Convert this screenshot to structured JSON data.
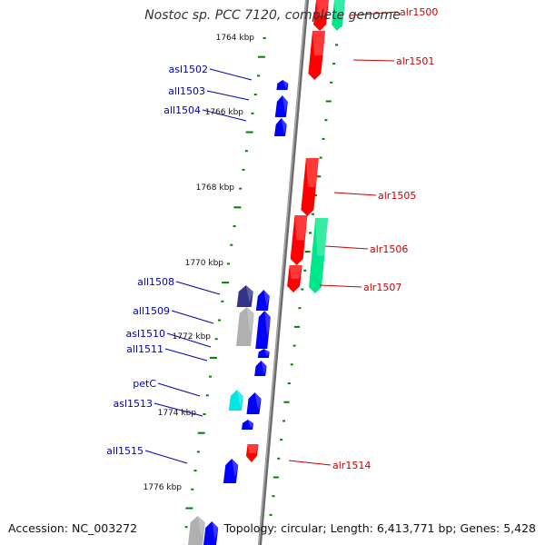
{
  "title": "Nostoc sp. PCC 7120, complete genome",
  "footer": {
    "accession": "Accession: NC_003272",
    "topology": "Topology: circular; Length: 6,413,771 bp; Genes: 5,428"
  },
  "colors": {
    "forward_gene": "#ff0000",
    "reverse_gene": "#0000ff",
    "forward_label": "#cc0000",
    "reverse_label": "#0000aa",
    "forward_rna": "#00e68a",
    "reverse_rna": "#00e5e5",
    "selected_reverse": "#333388",
    "pseudo": "#b0b0b0",
    "ticks": "#008000",
    "backbone": "#888888"
  },
  "kbp_labels": [
    "1764 kbp",
    "1766 kbp",
    "1768 kbp",
    "1770 kbp",
    "1772 kbp",
    "1774 kbp",
    "1776 kbp"
  ],
  "genes_forward": [
    "alr1500",
    "alr1501",
    "alr1505",
    "alr1506",
    "alr1507",
    "alr1514"
  ],
  "genes_reverse": [
    "asl1502",
    "all1503",
    "all1504",
    "all1508",
    "all1509",
    "asl1510",
    "all1511",
    "petC",
    "asl1513",
    "all1515"
  ]
}
